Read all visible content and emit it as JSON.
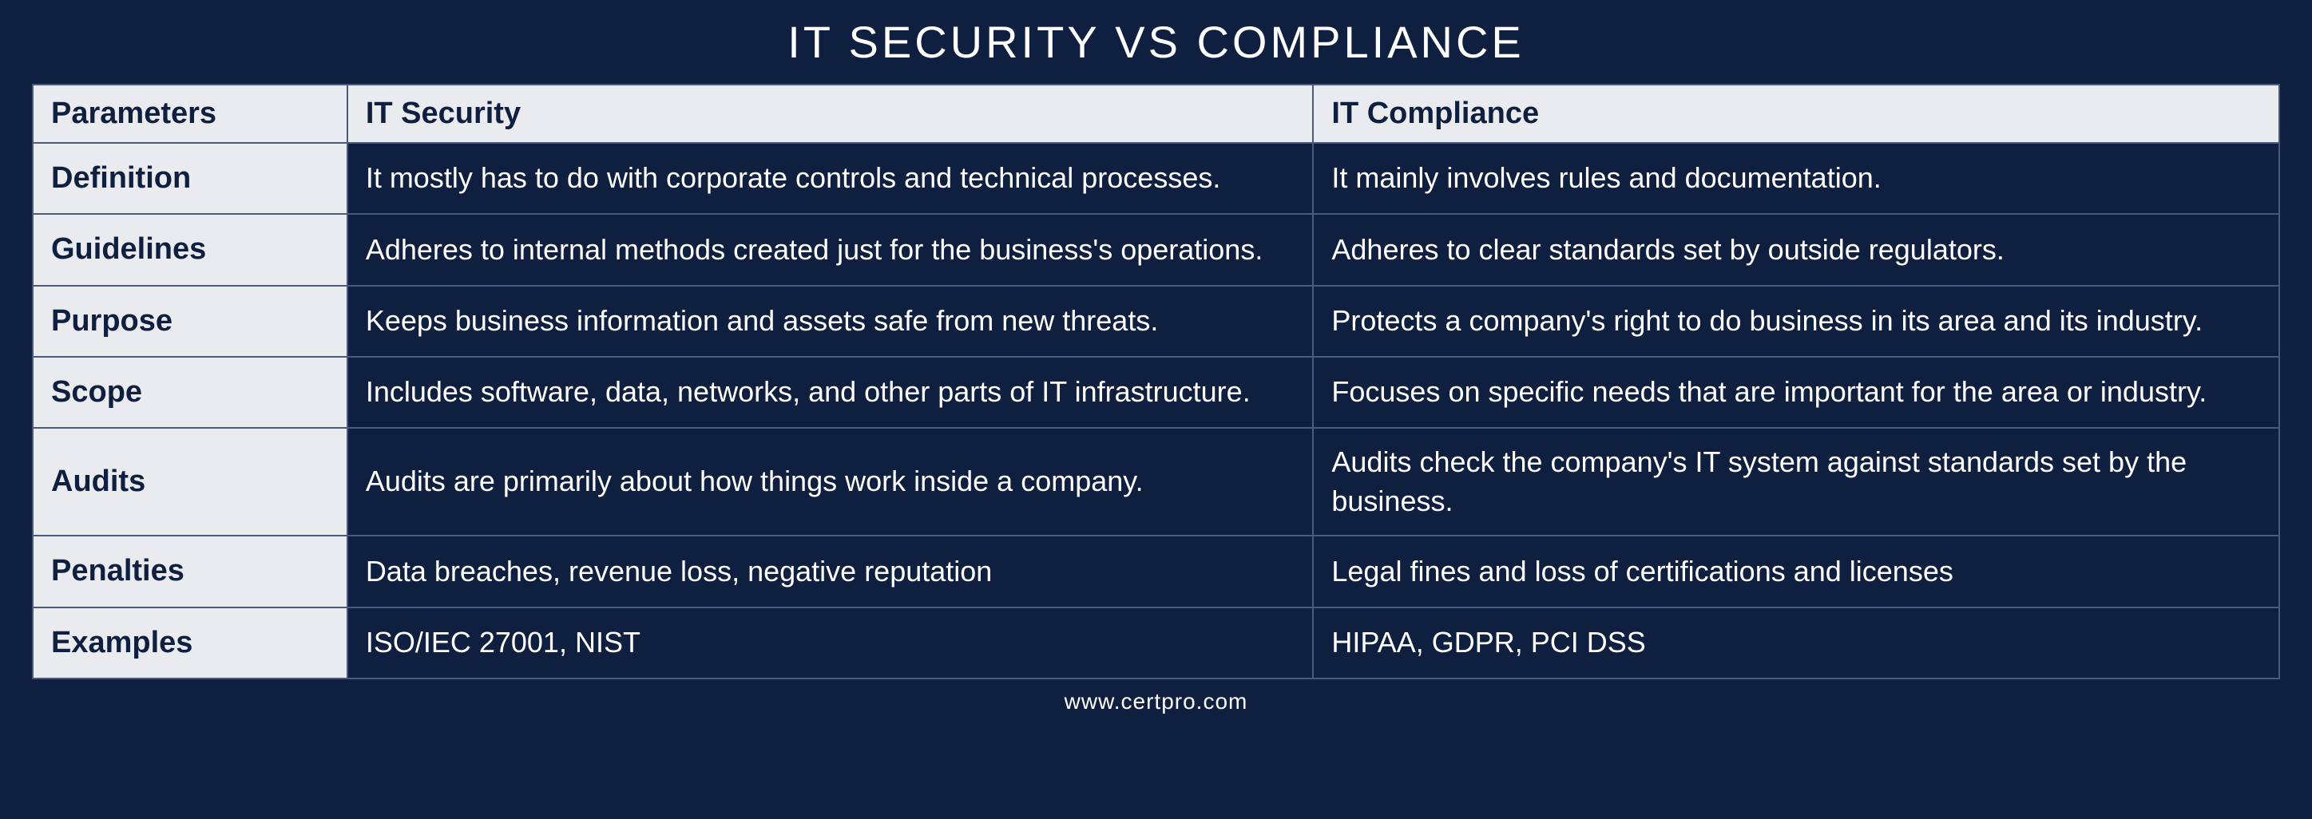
{
  "title": "IT SECURITY VS COMPLIANCE",
  "footer": "www.certpro.com",
  "styling": {
    "background_color": "#0f1f3f",
    "header_background": "#eaebef",
    "header_text_color": "#0f1f3f",
    "body_text_color": "#ffffff",
    "border_color": "#4a5a7a",
    "title_fontsize": 56,
    "header_fontsize": 38,
    "cell_fontsize": 36,
    "footer_fontsize": 28,
    "column_widths_pct": [
      14,
      43,
      43
    ]
  },
  "table": {
    "type": "table",
    "columns": [
      "Parameters",
      "IT Security",
      "IT Compliance"
    ],
    "rows": [
      {
        "param": "Definition",
        "security": "It mostly has to do with corporate controls and technical processes.",
        "compliance": "It mainly involves rules and documentation."
      },
      {
        "param": "Guidelines",
        "security": "Adheres to internal methods created just for the business's operations.",
        "compliance": "Adheres to clear standards set by outside regulators."
      },
      {
        "param": "Purpose",
        "security": "Keeps business information and assets safe from new threats.",
        "compliance": "Protects a company's right to do business in its area and its industry."
      },
      {
        "param": "Scope",
        "security": "Includes software, data, networks, and other parts of IT infrastructure.",
        "compliance": "Focuses on specific needs that are important for the area or industry."
      },
      {
        "param": "Audits",
        "security": "Audits are primarily about how things work inside a company.",
        "compliance": "Audits check the company's IT system against standards set by the business."
      },
      {
        "param": "Penalties",
        "security": "Data breaches, revenue loss, negative reputation",
        "compliance": "Legal fines and loss of certifications and licenses"
      },
      {
        "param": "Examples",
        "security": "ISO/IEC 27001, NIST",
        "compliance": "HIPAA, GDPR, PCI DSS"
      }
    ]
  }
}
